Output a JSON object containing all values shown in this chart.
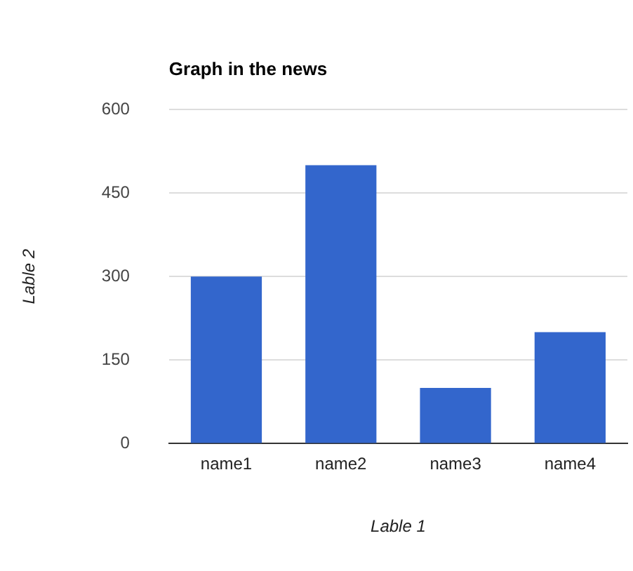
{
  "chart_data": {
    "type": "bar",
    "title": "Graph in the news",
    "xlabel": "Lable 1",
    "ylabel": "Lable 2",
    "categories": [
      "name1",
      "name2",
      "name3",
      "name4"
    ],
    "series": [
      {
        "color": "#3366cc",
        "values": [
          300,
          500,
          100,
          200
        ]
      }
    ],
    "ylim": [
      0,
      600
    ],
    "yticks": [
      0,
      150,
      300,
      450,
      600
    ],
    "grid": "y",
    "legend": false
  }
}
